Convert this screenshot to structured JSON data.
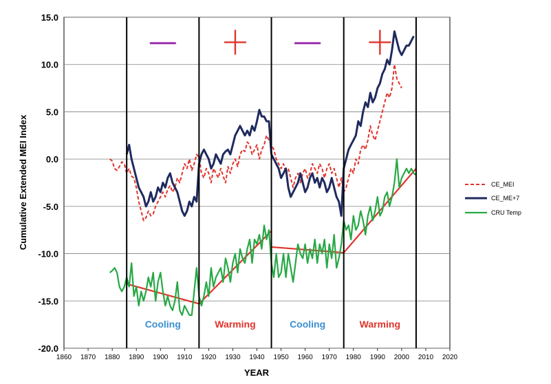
{
  "chart_data": {
    "type": "line",
    "title": "",
    "xlabel": "YEAR",
    "ylabel": "Cumulative Extended MEI Index",
    "xlim": [
      1860,
      2020
    ],
    "ylim": [
      -20,
      15
    ],
    "x_ticks": [
      "1860",
      "1870",
      "1880",
      "1890",
      "1900",
      "1910",
      "1920",
      "1930",
      "1940",
      "1950",
      "1960",
      "1970",
      "1980",
      "1990",
      "2000",
      "2010",
      "2020"
    ],
    "y_ticks": [
      "-20.0",
      "-15.0",
      "-10.0",
      "-5.0",
      "0.0",
      "5.0",
      "10.0",
      "15.0"
    ],
    "grid": true,
    "legend_position": "right",
    "colors": {
      "ce_mei": "#e0332b",
      "ce_me7": "#1f2a5e",
      "cru": "#27a845",
      "trend": "#e0332b",
      "minus_sign": "#9b2fae",
      "plus_sign": "#e0332b",
      "cooling_text": "#3a8fd0",
      "warming_text": "#e0332b"
    },
    "phase_boundaries": [
      1886,
      1916,
      1946,
      1976,
      2006
    ],
    "phase_signs": [
      "–",
      "+",
      "–",
      "+"
    ],
    "phase_labels": [
      "Cooling",
      "Warming",
      "Cooling",
      "Warming"
    ],
    "series": [
      {
        "name": "CE_MEI",
        "style": "dashed",
        "x": [
          1879,
          1880,
          1881,
          1882,
          1883,
          1884,
          1885,
          1886,
          1887,
          1888,
          1889,
          1890,
          1891,
          1892,
          1893,
          1894,
          1895,
          1896,
          1897,
          1898,
          1899,
          1900,
          1901,
          1902,
          1903,
          1904,
          1905,
          1906,
          1907,
          1908,
          1909,
          1910,
          1911,
          1912,
          1913,
          1914,
          1915,
          1916,
          1917,
          1918,
          1919,
          1920,
          1921,
          1922,
          1923,
          1924,
          1925,
          1926,
          1927,
          1928,
          1929,
          1930,
          1931,
          1932,
          1933,
          1934,
          1935,
          1936,
          1937,
          1938,
          1939,
          1940,
          1941,
          1942,
          1943,
          1944,
          1945,
          1946,
          1947,
          1948,
          1949,
          1950,
          1951,
          1952,
          1953,
          1954,
          1955,
          1956,
          1957,
          1958,
          1959,
          1960,
          1961,
          1962,
          1963,
          1964,
          1965,
          1966,
          1967,
          1968,
          1969,
          1970,
          1971,
          1972,
          1973,
          1974,
          1975,
          1976,
          1977,
          1978,
          1979,
          1980,
          1981,
          1982,
          1983,
          1984,
          1985,
          1986,
          1987,
          1988,
          1989,
          1990,
          1991,
          1992,
          1993,
          1994,
          1995,
          1996,
          1997,
          1998,
          1999,
          2000
        ],
        "y": [
          0.0,
          -0.2,
          -1.0,
          -1.2,
          -0.8,
          -0.3,
          -0.5,
          -1.5,
          -1.0,
          -1.8,
          -2.0,
          -3.0,
          -4.5,
          -5.5,
          -6.5,
          -6.2,
          -5.5,
          -6.0,
          -5.8,
          -5.0,
          -4.5,
          -4.0,
          -3.5,
          -4.0,
          -3.2,
          -2.8,
          -3.5,
          -3.0,
          -2.0,
          -2.5,
          -1.5,
          -0.5,
          -1.0,
          0.0,
          -1.2,
          -0.5,
          0.5,
          0.2,
          -1.5,
          -2.0,
          -1.0,
          -1.5,
          -2.5,
          -1.0,
          -1.5,
          -2.0,
          -1.0,
          -1.8,
          -2.5,
          -0.8,
          -1.5,
          -0.5,
          0.0,
          -0.8,
          0.5,
          1.0,
          0.8,
          1.8,
          1.5,
          0.5,
          1.0,
          1.5,
          0.0,
          1.0,
          1.5,
          2.5,
          2.0,
          1.5,
          1.0,
          0.0,
          -0.5,
          -1.0,
          -0.5,
          -1.5,
          -1.0,
          -2.0,
          -3.0,
          -2.0,
          -1.5,
          -2.5,
          -1.5,
          -1.0,
          -2.0,
          -1.5,
          -0.5,
          -1.0,
          -1.5,
          -0.5,
          -1.0,
          -2.0,
          -1.0,
          -0.5,
          -1.5,
          -1.0,
          -2.0,
          -3.0,
          -2.0,
          -3.5,
          -3.0,
          -2.0,
          -1.0,
          -1.5,
          0.0,
          -0.5,
          1.0,
          1.5,
          1.0,
          2.0,
          3.5,
          2.5,
          2.0,
          3.0,
          4.0,
          5.0,
          6.0,
          7.0,
          6.5,
          7.5,
          10.0,
          8.5,
          8.0,
          7.5
        ]
      },
      {
        "name": "CE_ME+7",
        "style": "solid",
        "x": [
          1886,
          1887,
          1888,
          1889,
          1890,
          1891,
          1892,
          1893,
          1894,
          1895,
          1896,
          1897,
          1898,
          1899,
          1900,
          1901,
          1902,
          1903,
          1904,
          1905,
          1906,
          1907,
          1908,
          1909,
          1910,
          1911,
          1912,
          1913,
          1914,
          1915,
          1916,
          1917,
          1918,
          1919,
          1920,
          1921,
          1922,
          1923,
          1924,
          1925,
          1926,
          1927,
          1928,
          1929,
          1930,
          1931,
          1932,
          1933,
          1934,
          1935,
          1936,
          1937,
          1938,
          1939,
          1940,
          1941,
          1942,
          1943,
          1944,
          1945,
          1946,
          1947,
          1948,
          1949,
          1950,
          1951,
          1952,
          1953,
          1954,
          1955,
          1956,
          1957,
          1958,
          1959,
          1960,
          1961,
          1962,
          1963,
          1964,
          1965,
          1966,
          1967,
          1968,
          1969,
          1970,
          1971,
          1972,
          1973,
          1974,
          1975,
          1976,
          1977,
          1978,
          1979,
          1980,
          1981,
          1982,
          1983,
          1984,
          1985,
          1986,
          1987,
          1988,
          1989,
          1990,
          1991,
          1992,
          1993,
          1994,
          1995,
          1996,
          1997,
          1998,
          1999,
          2000,
          2001,
          2002,
          2003,
          2004,
          2005
        ],
        "y": [
          0.5,
          1.5,
          0.0,
          -1.0,
          -2.0,
          -3.0,
          -3.5,
          -4.0,
          -5.0,
          -4.5,
          -3.5,
          -4.5,
          -4.0,
          -3.0,
          -3.5,
          -2.5,
          -3.0,
          -2.0,
          -1.5,
          -2.5,
          -3.0,
          -3.5,
          -4.5,
          -5.5,
          -6.0,
          -5.5,
          -4.5,
          -5.0,
          -4.0,
          -4.5,
          -0.5,
          0.5,
          1.0,
          0.5,
          0.0,
          -1.0,
          -0.5,
          0.5,
          0.0,
          -0.5,
          0.5,
          0.8,
          1.0,
          0.5,
          1.5,
          2.5,
          3.0,
          3.5,
          3.0,
          2.5,
          3.0,
          2.5,
          3.5,
          3.0,
          4.0,
          5.2,
          4.5,
          4.5,
          4.0,
          4.0,
          0.5,
          0.0,
          -0.5,
          -1.0,
          -2.0,
          -1.5,
          -1.0,
          -3.0,
          -4.0,
          -3.5,
          -3.0,
          -2.5,
          -1.5,
          -2.5,
          -3.5,
          -3.0,
          -2.0,
          -1.5,
          -2.5,
          -2.0,
          -3.0,
          -2.0,
          -2.5,
          -3.5,
          -3.0,
          -2.0,
          -3.0,
          -4.0,
          -4.5,
          -6.0,
          -1.0,
          0.0,
          1.0,
          1.5,
          2.0,
          2.5,
          4.0,
          3.5,
          5.0,
          6.0,
          5.5,
          7.0,
          6.0,
          6.5,
          7.5,
          8.0,
          9.0,
          9.5,
          10.5,
          10.0,
          11.5,
          13.5,
          12.5,
          11.5,
          11.0,
          11.5,
          12.0,
          12.0,
          12.5,
          13.0
        ]
      },
      {
        "name": "CRU Temp",
        "style": "solid",
        "x": [
          1879,
          1880,
          1881,
          1882,
          1883,
          1884,
          1885,
          1886,
          1887,
          1888,
          1889,
          1890,
          1891,
          1892,
          1893,
          1894,
          1895,
          1896,
          1897,
          1898,
          1899,
          1900,
          1901,
          1902,
          1903,
          1904,
          1905,
          1906,
          1907,
          1908,
          1909,
          1910,
          1911,
          1912,
          1913,
          1914,
          1915,
          1916,
          1917,
          1918,
          1919,
          1920,
          1921,
          1922,
          1923,
          1924,
          1925,
          1926,
          1927,
          1928,
          1929,
          1930,
          1931,
          1932,
          1933,
          1934,
          1935,
          1936,
          1937,
          1938,
          1939,
          1940,
          1941,
          1942,
          1943,
          1944,
          1945,
          1946,
          1947,
          1948,
          1949,
          1950,
          1951,
          1952,
          1953,
          1954,
          1955,
          1956,
          1957,
          1958,
          1959,
          1960,
          1961,
          1962,
          1963,
          1964,
          1965,
          1966,
          1967,
          1968,
          1969,
          1970,
          1971,
          1972,
          1973,
          1974,
          1975,
          1976,
          1977,
          1978,
          1979,
          1980,
          1981,
          1982,
          1983,
          1984,
          1985,
          1986,
          1987,
          1988,
          1989,
          1990,
          1991,
          1992,
          1993,
          1994,
          1995,
          1996,
          1997,
          1998,
          1999,
          2000,
          2001,
          2002,
          2003,
          2004,
          2005,
          2006
        ],
        "y": [
          -12.0,
          -11.8,
          -11.5,
          -12.0,
          -13.5,
          -14.0,
          -13.5,
          -12.5,
          -13.5,
          -11.0,
          -14.5,
          -13.5,
          -15.5,
          -14.0,
          -15.0,
          -14.0,
          -12.5,
          -13.5,
          -12.0,
          -15.0,
          -13.0,
          -12.0,
          -14.0,
          -15.5,
          -14.5,
          -15.5,
          -16.0,
          -15.0,
          -13.0,
          -16.0,
          -16.5,
          -15.5,
          -16.0,
          -16.5,
          -16.5,
          -14.0,
          -11.5,
          -14.5,
          -15.5,
          -14.5,
          -13.0,
          -14.5,
          -11.5,
          -13.5,
          -12.5,
          -12.0,
          -11.5,
          -13.0,
          -10.5,
          -11.5,
          -13.0,
          -11.0,
          -10.0,
          -12.0,
          -9.5,
          -10.5,
          -11.0,
          -9.5,
          -8.5,
          -11.0,
          -8.5,
          -9.0,
          -8.0,
          -9.5,
          -7.0,
          -8.5,
          -7.5,
          -11.0,
          -12.5,
          -10.0,
          -12.5,
          -12.0,
          -10.0,
          -12.5,
          -10.0,
          -11.5,
          -13.0,
          -11.0,
          -9.0,
          -10.0,
          -10.5,
          -9.0,
          -11.0,
          -9.5,
          -10.5,
          -8.5,
          -11.0,
          -9.0,
          -10.0,
          -8.5,
          -11.5,
          -9.0,
          -10.5,
          -8.0,
          -11.5,
          -10.5,
          -9.0,
          -6.5,
          -7.5,
          -7.0,
          -8.5,
          -6.0,
          -7.5,
          -7.0,
          -5.5,
          -6.5,
          -8.0,
          -6.0,
          -5.0,
          -6.5,
          -5.5,
          -4.0,
          -6.0,
          -5.5,
          -4.0,
          -3.5,
          -5.0,
          -4.0,
          -2.5,
          0.0,
          -3.0,
          -2.0,
          -1.5,
          -1.0,
          -1.5,
          -1.0,
          -1.5,
          -1.7
        ]
      }
    ],
    "trend_segments": [
      {
        "x": [
          1886,
          1916
        ],
        "y": [
          -13.2,
          -15.3
        ]
      },
      {
        "x": [
          1916,
          1946
        ],
        "y": [
          -15.3,
          -7.6
        ]
      },
      {
        "x": [
          1946,
          1976
        ],
        "y": [
          -9.3,
          -9.9
        ]
      },
      {
        "x": [
          1976,
          2006
        ],
        "y": [
          -9.9,
          -1.0
        ]
      }
    ]
  }
}
